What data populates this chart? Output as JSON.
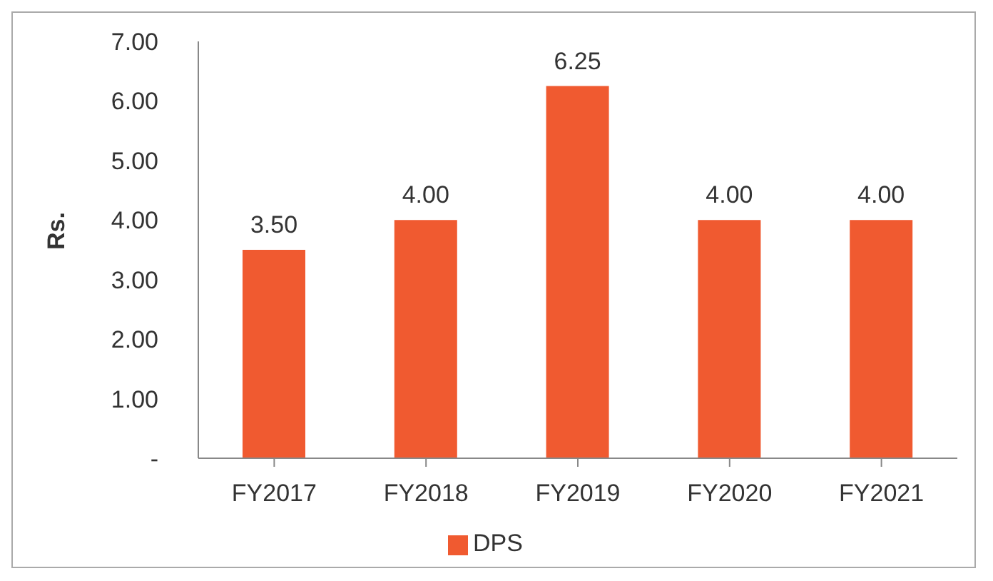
{
  "chart_data": {
    "type": "bar",
    "ylabel": "Rs.",
    "categories": [
      "FY2017",
      "FY2018",
      "FY2019",
      "FY2020",
      "FY2021"
    ],
    "series": [
      {
        "name": "DPS",
        "color": "#f05a30",
        "values": [
          3.5,
          4.0,
          6.25,
          4.0,
          4.0
        ]
      }
    ],
    "value_labels": [
      "3.50",
      "4.00",
      "6.25",
      "4.00",
      "4.00"
    ],
    "ylim": [
      0,
      7
    ],
    "yticks": [
      {
        "value": 0,
        "label": "-"
      },
      {
        "value": 1,
        "label": "1.00"
      },
      {
        "value": 2,
        "label": "2.00"
      },
      {
        "value": 3,
        "label": "3.00"
      },
      {
        "value": 4,
        "label": "4.00"
      },
      {
        "value": 5,
        "label": "5.00"
      },
      {
        "value": 6,
        "label": "6.00"
      },
      {
        "value": 7,
        "label": "7.00"
      }
    ],
    "grid": false,
    "legend": "bottom"
  }
}
